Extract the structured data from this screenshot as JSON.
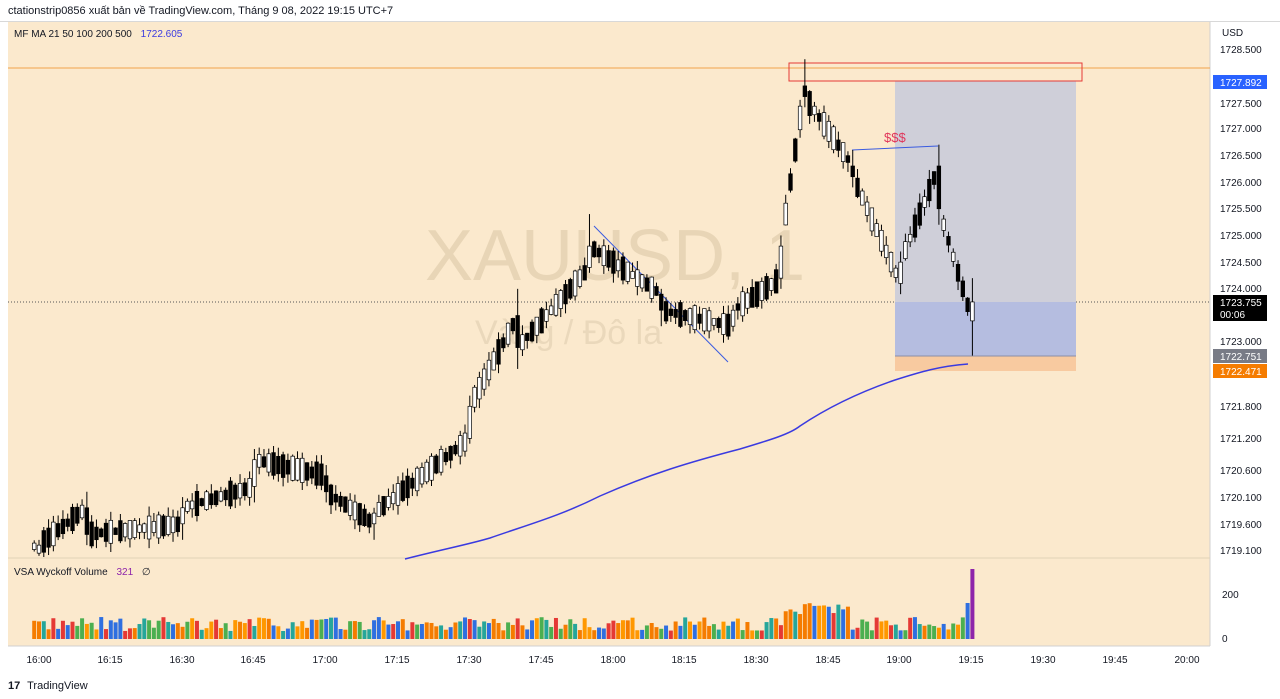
{
  "header": {
    "attribution": "ctationstrip0856 xuất bản về TradingView.com, Tháng 9 08, 2022 19:15 UTC+7"
  },
  "footer": {
    "logo_text": "17",
    "brand": "TradingView"
  },
  "watermark": {
    "symbol": "XAUUSD, 1",
    "name": "Vàng / Đô la"
  },
  "colors": {
    "background": "#fbe9cd",
    "up": "#ffffff",
    "down": "#000000",
    "ma": "#3a3ae0",
    "zone_target": "#cfcfd9",
    "zone_entry": "#b5bde0",
    "zone_stop": "#f8caa0",
    "box_red": "#e53935"
  },
  "indicators": {
    "ma_label": "MF MA 21 50 100 200 500",
    "ma_value": "1722.605",
    "vsa_label": "VSA Wyckoff Volume",
    "vsa_value": "321",
    "vsa_extra": "∅"
  },
  "annotations": {
    "liquidity_label": "$$$"
  },
  "price_scale": {
    "currency": "USD",
    "tick_labels": [
      "1728.500",
      "1727.500",
      "1727.000",
      "1726.500",
      "1726.000",
      "1725.500",
      "1725.000",
      "1724.500",
      "1724.000",
      "1723.000",
      "1721.800",
      "1721.200",
      "1720.600",
      "1720.100",
      "1719.600",
      "1719.100"
    ],
    "badges": [
      {
        "text": "1727.892",
        "color": "#2962ff"
      },
      {
        "text": "1723.755",
        "color": "#000000"
      },
      {
        "text": "00:06",
        "color": "#000000"
      },
      {
        "text": "1722.751",
        "color": "#787b86"
      },
      {
        "text": "1722.471",
        "color": "#f57c00"
      }
    ]
  },
  "volume_scale": {
    "tick_labels": [
      "200",
      "0"
    ]
  },
  "time_axis": {
    "tick_labels": [
      "16:00",
      "16:15",
      "16:30",
      "16:45",
      "17:00",
      "17:15",
      "17:30",
      "17:45",
      "18:00",
      "18:15",
      "18:30",
      "18:45",
      "19:00",
      "19:15",
      "19:30",
      "19:45",
      "20:00"
    ]
  },
  "chart_data": {
    "type": "candlestick",
    "symbol": "XAUUSD",
    "interval": "1",
    "x_start": "15:59",
    "x_end": "19:15",
    "y_unit": "USD",
    "ma_line": {
      "times": [
        "17:17",
        "17:35",
        "17:50",
        "18:05",
        "18:20",
        "18:35",
        "18:45",
        "19:00",
        "19:15"
      ],
      "values": [
        1719.1,
        1719.4,
        1719.8,
        1720.3,
        1720.8,
        1721.3,
        1721.9,
        1722.3,
        1722.6
      ]
    },
    "trendline": {
      "from": [
        "17:54",
        1725.3
      ],
      "to": [
        "18:26",
        1723.3
      ]
    },
    "liquidity_line": {
      "from": [
        "18:50",
        1726.65
      ],
      "to": [
        "19:09",
        1726.7
      ]
    },
    "top_box": {
      "from_time": "18:38",
      "to_time": "19:56",
      "price_high": 1728.3,
      "price_low": 1727.95
    },
    "position": {
      "type": "long",
      "from_time": "19:00",
      "to_time": "19:54",
      "target": 1727.892,
      "entry": 1722.751,
      "stop": 1722.471
    },
    "current_price": 1723.755,
    "horizontal_level": 1728.05,
    "candles_sampled": [
      {
        "t": "16:00",
        "o": 1719.05,
        "h": 1719.3,
        "l": 1719.0,
        "c": 1719.2
      },
      {
        "t": "16:10",
        "o": 1719.9,
        "h": 1720.2,
        "l": 1719.2,
        "c": 1719.4
      },
      {
        "t": "16:30",
        "o": 1719.6,
        "h": 1720.1,
        "l": 1719.3,
        "c": 1719.9
      },
      {
        "t": "16:45",
        "o": 1720.3,
        "h": 1721.0,
        "l": 1720.0,
        "c": 1720.8
      },
      {
        "t": "17:00",
        "o": 1720.5,
        "h": 1720.7,
        "l": 1720.0,
        "c": 1720.2
      },
      {
        "t": "17:10",
        "o": 1719.6,
        "h": 1719.9,
        "l": 1719.3,
        "c": 1719.8
      },
      {
        "t": "17:30",
        "o": 1721.2,
        "h": 1722.0,
        "l": 1721.1,
        "c": 1721.8
      },
      {
        "t": "17:40",
        "o": 1723.5,
        "h": 1724.0,
        "l": 1722.5,
        "c": 1722.9
      },
      {
        "t": "17:55",
        "o": 1724.4,
        "h": 1725.4,
        "l": 1724.3,
        "c": 1724.8
      },
      {
        "t": "18:10",
        "o": 1723.9,
        "h": 1724.0,
        "l": 1723.3,
        "c": 1723.6
      },
      {
        "t": "18:25",
        "o": 1723.3,
        "h": 1723.7,
        "l": 1723.2,
        "c": 1723.6
      },
      {
        "t": "18:35",
        "o": 1724.2,
        "h": 1725.0,
        "l": 1724.0,
        "c": 1724.8
      },
      {
        "t": "18:40",
        "o": 1727.8,
        "h": 1728.3,
        "l": 1727.4,
        "c": 1727.6
      },
      {
        "t": "18:50",
        "o": 1726.3,
        "h": 1726.6,
        "l": 1725.9,
        "c": 1726.1
      },
      {
        "t": "19:00",
        "o": 1724.1,
        "h": 1724.7,
        "l": 1723.9,
        "c": 1724.5
      },
      {
        "t": "19:08",
        "o": 1726.3,
        "h": 1726.7,
        "l": 1725.2,
        "c": 1725.5
      },
      {
        "t": "19:15",
        "o": 1723.4,
        "h": 1724.2,
        "l": 1722.75,
        "c": 1723.755
      }
    ]
  }
}
